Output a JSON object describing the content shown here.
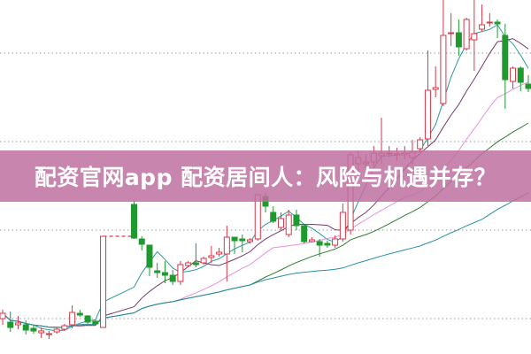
{
  "banner": {
    "title": "配资官网app 配资居间人：风险与机遇并存？"
  },
  "chart_data": {
    "type": "candlestick",
    "title": "",
    "xlabel": "",
    "ylabel": "",
    "ylim": [
      0,
      40
    ],
    "grid": "horizontal-dotted",
    "colors": {
      "up": "#d9364a",
      "down": "#1f9a2e",
      "grid": "#9a9a9a",
      "banner": "#be70a0"
    },
    "candles": [
      [
        4.0,
        5.0,
        3.3,
        4.6
      ],
      [
        3.6,
        4.8,
        2.5,
        3.0
      ],
      [
        3.3,
        4.3,
        2.8,
        3.5
      ],
      [
        3.3,
        3.8,
        2.2,
        2.7
      ],
      [
        2.9,
        3.2,
        2.3,
        2.6
      ],
      [
        2.4,
        3.0,
        1.8,
        2.6
      ],
      [
        2.2,
        2.6,
        1.7,
        2.3
      ],
      [
        2.5,
        3.0,
        2.3,
        2.8
      ],
      [
        2.8,
        3.4,
        2.6,
        3.2
      ],
      [
        3.3,
        5.5,
        2.9,
        4.7
      ],
      [
        4.6,
        5.0,
        4.2,
        4.4
      ],
      [
        4.3,
        4.4,
        3.4,
        3.6
      ],
      [
        3.7,
        3.9,
        3.2,
        3.4
      ],
      [
        3.0,
        13.3,
        3.0,
        13.3
      ],
      null,
      null,
      null,
      [
        16.9,
        17.4,
        13.0,
        13.1
      ],
      [
        13.0,
        13.3,
        11.7,
        12.4
      ],
      [
        12.3,
        12.3,
        8.8,
        9.8
      ],
      [
        9.4,
        10.3,
        8.6,
        9.2
      ],
      [
        9.2,
        10.5,
        8.0,
        8.9
      ],
      [
        8.9,
        9.5,
        7.8,
        8.2
      ],
      [
        8.2,
        10.5,
        7.8,
        10.1
      ],
      [
        10.0,
        10.5,
        9.8,
        10.3
      ],
      [
        10.3,
        12.5,
        9.8,
        10.1
      ],
      [
        10.3,
        11.0,
        10.1,
        10.8
      ],
      [
        10.9,
        12.2,
        10.3,
        11.1
      ],
      [
        11.3,
        12.0,
        11.0,
        11.5
      ],
      [
        11.3,
        14.5,
        8.2,
        13.2
      ],
      [
        13.2,
        13.2,
        11.3,
        12.8
      ],
      [
        13.0,
        13.5,
        11.5,
        12.8
      ],
      [
        12.7,
        13.1,
        12.5,
        12.9
      ],
      [
        13.0,
        18.0,
        12.8,
        18.0
      ],
      [
        17.8,
        18.3,
        16.0,
        16.7
      ],
      [
        16.0,
        16.7,
        14.8,
        15.0
      ],
      [
        14.3,
        16.0,
        14.0,
        15.3
      ],
      [
        13.5,
        16.3,
        13.2,
        15.7
      ],
      [
        15.7,
        16.3,
        14.0,
        14.5
      ],
      [
        14.5,
        14.5,
        12.5,
        12.7
      ],
      [
        12.7,
        13.2,
        12.6,
        12.9
      ],
      [
        12.7,
        13.0,
        11.0,
        12.3
      ],
      [
        12.5,
        12.8,
        12.0,
        12.3
      ],
      [
        12.3,
        13.4,
        12.0,
        13.0
      ],
      [
        13.0,
        17.0,
        12.7,
        16.0
      ],
      [
        14.0,
        22.8,
        13.5,
        22.5
      ],
      [
        21.5,
        23.0,
        20.0,
        22.2
      ],
      [
        21.5,
        22.5,
        20.5,
        21.7
      ],
      [
        21.7,
        23.5,
        21.0,
        22.7
      ],
      [
        22.4,
        26.7,
        21.5,
        22.7
      ],
      [
        22.6,
        23.5,
        22.2,
        22.7
      ],
      [
        22.5,
        23.3,
        21.8,
        22.6
      ],
      [
        22.5,
        23.5,
        22.0,
        22.7
      ],
      [
        22.2,
        24.2,
        21.3,
        22.8
      ],
      [
        23.2,
        24.5,
        22.8,
        24.2
      ],
      [
        24.3,
        34.3,
        23.5,
        29.8
      ],
      [
        29.9,
        32.5,
        29.0,
        30.1
      ],
      [
        28.3,
        40.0,
        28.0,
        36.0
      ],
      [
        36.2,
        38.5,
        34.8,
        36.3
      ],
      [
        36.3,
        37.8,
        33.7,
        34.7
      ],
      [
        34.5,
        38.0,
        34.3,
        37.8
      ],
      [
        35.5,
        40.0,
        32.0,
        36.2
      ],
      [
        36.7,
        39.5,
        36.5,
        37.2
      ],
      [
        37.4,
        38.5,
        37.0,
        37.5
      ],
      [
        37.5,
        37.8,
        35.7,
        37.3
      ],
      [
        36.0,
        37.3,
        27.7,
        31.0
      ],
      [
        30.8,
        32.5,
        30.0,
        32.3
      ],
      [
        32.3,
        32.5,
        29.7,
        30.7
      ],
      [
        30.5,
        31.5,
        29.6,
        30.0
      ]
    ],
    "candle_fields": [
      "open",
      "high",
      "low",
      "close"
    ],
    "moving_averages": [
      {
        "period": 5,
        "color": "#2a9a9a"
      },
      {
        "period": 10,
        "color": "#7a3a6a"
      },
      {
        "period": 20,
        "color": "#e890e0"
      },
      {
        "period": 30,
        "color": "#2e7d32"
      },
      {
        "period": 60,
        "color": "#2a8fa8"
      }
    ],
    "gridlines": [
      34,
      24,
      14,
      4
    ]
  }
}
